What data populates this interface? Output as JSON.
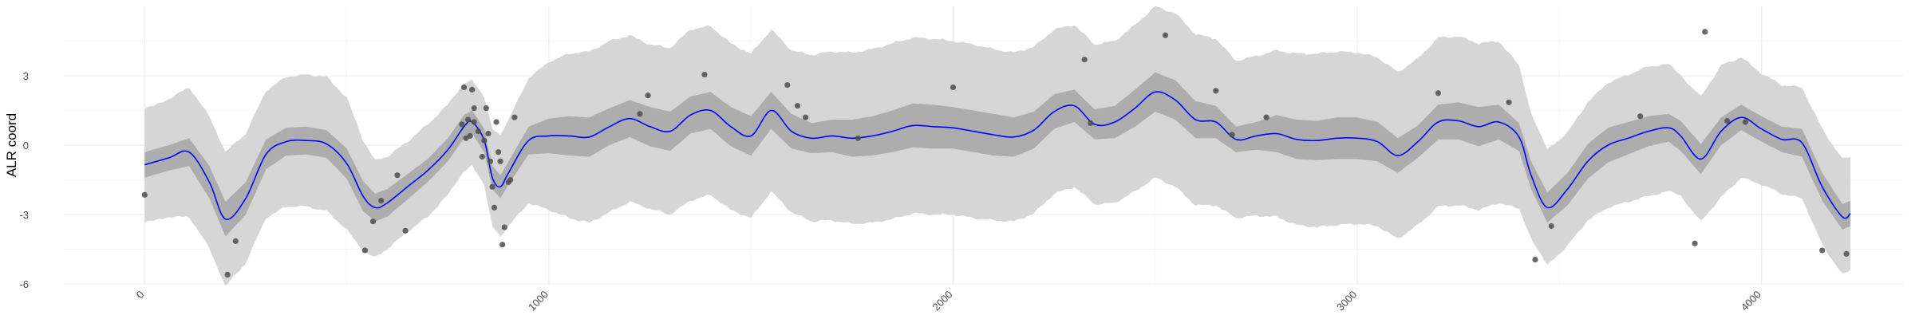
{
  "chart_data": {
    "type": "line",
    "title": "",
    "xlabel": "",
    "ylabel": "ALR coord",
    "xlim": [
      -200,
      4350
    ],
    "ylim": [
      -6,
      6
    ],
    "grid": true,
    "x_ticks": [
      0,
      1000,
      2000,
      3000,
      4000
    ],
    "x_tick_labels": [
      "0",
      "1000",
      "2000",
      "3000",
      "4000"
    ],
    "y_ticks": [
      -6,
      -3,
      0,
      3
    ],
    "y_tick_labels": [
      "-6",
      "-3",
      "0",
      "3"
    ],
    "colors": {
      "line": "#0000ff",
      "inner_band": "#adadad",
      "outer_band": "#d6d6d6",
      "points": "#4d4d4d",
      "grid": "#ebebeb"
    },
    "series": [
      {
        "kind": "mean_with_bands",
        "x": [
          0,
          60,
          110,
          160,
          200,
          250,
          300,
          350,
          400,
          450,
          500,
          540,
          570,
          600,
          650,
          700,
          750,
          790,
          810,
          840,
          860,
          880,
          900,
          950,
          1000,
          1050,
          1100,
          1150,
          1200,
          1250,
          1300,
          1350,
          1400,
          1450,
          1500,
          1550,
          1600,
          1650,
          1700,
          1750,
          1800,
          1850,
          1900,
          1950,
          2000,
          2050,
          2100,
          2150,
          2200,
          2250,
          2300,
          2350,
          2400,
          2450,
          2500,
          2550,
          2600,
          2650,
          2700,
          2750,
          2800,
          2850,
          2900,
          2950,
          3000,
          3050,
          3100,
          3150,
          3200,
          3250,
          3300,
          3350,
          3400,
          3430,
          3470,
          3520,
          3570,
          3620,
          3670,
          3720,
          3770,
          3800,
          3850,
          3900,
          3950,
          4000,
          4050,
          4100,
          4150,
          4200,
          4220
        ],
        "mean": [
          -0.85,
          -0.55,
          -0.3,
          -1.6,
          -3.2,
          -2.3,
          -0.4,
          0.15,
          0.2,
          0.05,
          -0.8,
          -2.2,
          -2.7,
          -2.5,
          -1.8,
          -1.1,
          -0.2,
          0.8,
          1.0,
          0.2,
          -1.4,
          -1.8,
          -1.2,
          0.2,
          0.4,
          0.4,
          0.35,
          0.8,
          1.15,
          0.8,
          0.6,
          1.3,
          1.5,
          0.8,
          0.4,
          1.5,
          0.6,
          0.3,
          0.4,
          0.3,
          0.4,
          0.6,
          0.85,
          0.8,
          0.75,
          0.6,
          0.45,
          0.35,
          0.65,
          1.45,
          1.7,
          0.9,
          1.0,
          1.6,
          2.3,
          1.95,
          1.1,
          1.0,
          0.25,
          0.4,
          0.5,
          0.25,
          0.2,
          0.3,
          0.3,
          0.15,
          -0.45,
          0.15,
          1.0,
          1.05,
          0.8,
          1.0,
          0.35,
          -1.3,
          -2.7,
          -1.9,
          -0.7,
          0.0,
          0.3,
          0.6,
          0.75,
          0.4,
          -0.6,
          0.6,
          1.2,
          0.7,
          0.25,
          0.1,
          -1.8,
          -3.1,
          -2.95
        ],
        "inner_half_width": [
          0.55,
          0.55,
          0.6,
          0.7,
          0.75,
          0.7,
          0.65,
          0.6,
          0.6,
          0.6,
          0.65,
          0.65,
          0.6,
          0.6,
          0.55,
          0.5,
          0.5,
          0.5,
          0.5,
          0.5,
          0.5,
          0.5,
          0.5,
          0.6,
          0.75,
          0.85,
          0.85,
          0.8,
          0.8,
          0.85,
          0.85,
          0.8,
          0.8,
          0.85,
          0.85,
          0.8,
          0.75,
          0.65,
          0.7,
          0.8,
          0.85,
          0.9,
          0.95,
          0.95,
          0.9,
          0.9,
          0.9,
          0.85,
          0.8,
          0.75,
          0.7,
          0.65,
          0.7,
          0.8,
          0.85,
          0.85,
          0.8,
          0.7,
          0.55,
          0.6,
          0.8,
          0.85,
          0.85,
          0.9,
          0.9,
          0.85,
          0.75,
          0.7,
          0.75,
          0.8,
          0.85,
          0.75,
          0.6,
          0.6,
          0.65,
          0.7,
          0.75,
          0.75,
          0.7,
          0.65,
          0.6,
          0.65,
          0.65,
          0.6,
          0.55,
          0.55,
          0.55,
          0.6,
          0.6,
          0.55,
          0.55
        ],
        "outer_half_width": [
          2.45,
          2.55,
          2.8,
          2.85,
          2.9,
          2.8,
          2.75,
          2.8,
          2.85,
          2.9,
          2.85,
          2.4,
          2.1,
          2.0,
          1.95,
          2.0,
          1.95,
          1.9,
          1.85,
          1.9,
          2.1,
          2.2,
          2.3,
          2.7,
          3.2,
          3.55,
          3.7,
          3.7,
          3.6,
          3.55,
          3.6,
          3.7,
          3.65,
          3.6,
          3.55,
          3.5,
          3.5,
          3.6,
          3.65,
          3.7,
          3.75,
          3.8,
          3.8,
          3.8,
          3.75,
          3.75,
          3.7,
          3.65,
          3.6,
          3.55,
          3.5,
          3.45,
          3.5,
          3.6,
          3.7,
          3.75,
          3.7,
          3.6,
          3.4,
          3.45,
          3.6,
          3.7,
          3.75,
          3.75,
          3.7,
          3.65,
          3.6,
          3.6,
          3.65,
          3.65,
          3.6,
          3.5,
          3.1,
          2.7,
          2.5,
          2.45,
          2.55,
          2.7,
          2.75,
          2.8,
          2.75,
          2.6,
          2.7,
          2.85,
          2.6,
          2.4,
          2.35,
          2.4,
          2.5,
          2.5,
          2.45
        ]
      },
      {
        "kind": "observations",
        "points": [
          [
            0,
            -2.15
          ],
          [
            205,
            -5.6
          ],
          [
            225,
            -4.15
          ],
          [
            545,
            -4.55
          ],
          [
            565,
            -3.3
          ],
          [
            585,
            -2.4
          ],
          [
            625,
            -1.3
          ],
          [
            645,
            -3.7
          ],
          [
            790,
            2.5
          ],
          [
            800,
            1.1
          ],
          [
            785,
            0.9
          ],
          [
            795,
            0.3
          ],
          [
            805,
            0.4
          ],
          [
            810,
            2.4
          ],
          [
            815,
            1.6
          ],
          [
            815,
            1.0
          ],
          [
            825,
            0.6
          ],
          [
            835,
            -0.5
          ],
          [
            840,
            0.2
          ],
          [
            845,
            1.6
          ],
          [
            850,
            0.5
          ],
          [
            855,
            -0.7
          ],
          [
            860,
            -1.8
          ],
          [
            865,
            -2.7
          ],
          [
            870,
            1.0
          ],
          [
            875,
            -0.3
          ],
          [
            880,
            -0.7
          ],
          [
            885,
            -4.3
          ],
          [
            890,
            -3.55
          ],
          [
            900,
            -1.6
          ],
          [
            905,
            -1.5
          ],
          [
            915,
            1.2
          ],
          [
            1225,
            1.35
          ],
          [
            1245,
            2.15
          ],
          [
            1385,
            3.05
          ],
          [
            1590,
            2.6
          ],
          [
            1615,
            1.7
          ],
          [
            1635,
            1.2
          ],
          [
            1765,
            0.3
          ],
          [
            2000,
            2.5
          ],
          [
            2325,
            3.7
          ],
          [
            2340,
            0.95
          ],
          [
            2525,
            4.75
          ],
          [
            2650,
            2.35
          ],
          [
            2690,
            0.45
          ],
          [
            2775,
            1.2
          ],
          [
            3200,
            2.25
          ],
          [
            3375,
            1.85
          ],
          [
            3440,
            -4.95
          ],
          [
            3480,
            -3.5
          ],
          [
            3700,
            1.25
          ],
          [
            3835,
            -4.25
          ],
          [
            3860,
            4.9
          ],
          [
            3915,
            1.05
          ],
          [
            3960,
            1.0
          ],
          [
            4150,
            -4.55
          ],
          [
            4210,
            -4.7
          ]
        ]
      }
    ]
  }
}
